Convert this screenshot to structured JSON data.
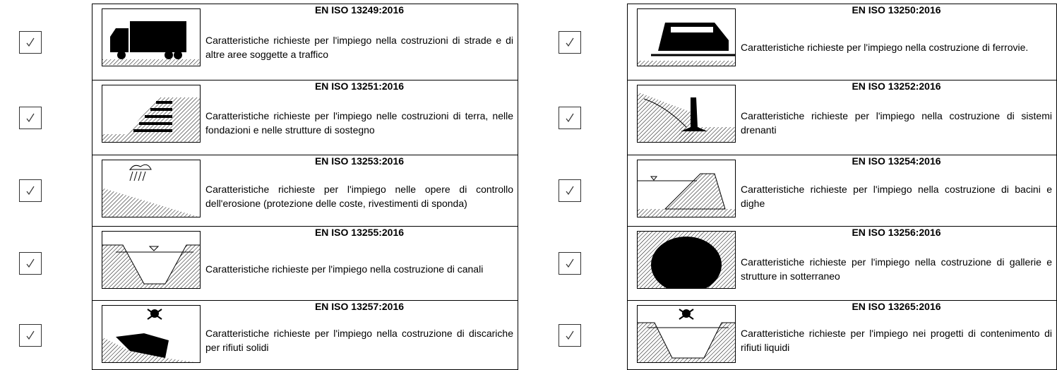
{
  "items": [
    {
      "code": "EN ISO 13249:2016",
      "description": "Caratteristiche richieste per l'impiego nella costruzioni di strade e di altre aree soggette a traffico"
    },
    {
      "code": "EN ISO 13250:2016",
      "description": "Caratteristiche richieste per l'impiego nella costruzione di ferrovie."
    },
    {
      "code": "EN ISO 13251:2016",
      "description": "Caratteristiche richieste per l'impiego nelle costruzioni di terra, nelle fondazioni e nelle strutture di sostegno"
    },
    {
      "code": "EN ISO 13252:2016",
      "description": "Caratteristiche richieste per l'impiego nella costruzione di sistemi drenanti"
    },
    {
      "code": "EN ISO 13253:2016",
      "description": "Caratteristiche richieste per l'impiego nelle opere di controllo dell'erosione (protezione delle coste, rivestimenti di sponda)"
    },
    {
      "code": "EN ISO 13254:2016",
      "description": "Caratteristiche richieste per l'impiego nella costruzione di bacini e dighe"
    },
    {
      "code": "EN ISO 13255:2016",
      "description": "Caratteristiche richieste per l'impiego nella costruzione di canali"
    },
    {
      "code": "EN ISO 13256:2016",
      "description": "Caratteristiche richieste per l'impiego nella costruzione di gallerie e strutture in sotterraneo"
    },
    {
      "code": "EN ISO 13257:2016",
      "description": "Caratteristiche richieste per l'impiego nella costruzione di discariche per rifiuti solidi"
    },
    {
      "code": "EN ISO 13265:2016",
      "description": "Caratteristiche richieste per l'impiego nei progetti di contenimento di rifiuti liquidi"
    }
  ]
}
